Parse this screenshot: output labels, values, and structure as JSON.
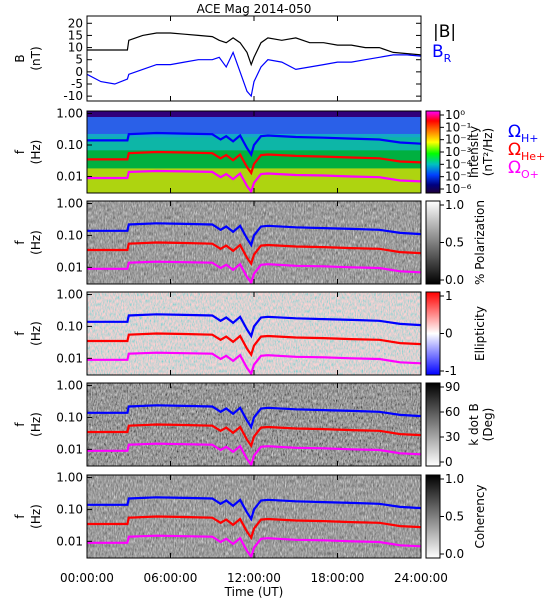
{
  "chart_data": {
    "title": "ACE Mag 2014-050",
    "x_axis": {
      "label": "Time (UT)",
      "ticks": [
        "00:00:00",
        "06:00:00",
        "12:00:00",
        "18:00:00",
        "24:00:00"
      ],
      "range_hours": [
        0,
        24
      ]
    },
    "panels": [
      {
        "id": "field",
        "type": "line",
        "ylabel": "B",
        "yunit": "(nT)",
        "ylim": [
          -12,
          23
        ],
        "yticks": [
          "20",
          "15",
          "10",
          "5",
          "0",
          "-5",
          "-10"
        ],
        "legend": [
          {
            "name": "|B|",
            "color": "#000000"
          },
          {
            "name": "B",
            "sub": "R",
            "color": "#0000ff"
          }
        ],
        "series": [
          {
            "name": "|B|",
            "color": "#000000",
            "x": [
              0,
              2.9,
              3.0,
              4,
              5,
              6,
              7,
              8,
              9,
              9.5,
              10,
              10.5,
              11,
              11.5,
              11.8,
              12,
              12.5,
              13,
              14,
              15,
              16,
              17,
              18,
              19,
              20,
              21,
              22,
              23,
              24
            ],
            "y": [
              9,
              9,
              13,
              15,
              16,
              16,
              15.5,
              15,
              14.5,
              13,
              12,
              14,
              12,
              8,
              3,
              6,
              12,
              14,
              13,
              14,
              12,
              12,
              11,
              11,
              10,
              10,
              8,
              7.5,
              7
            ]
          },
          {
            "name": "B_R",
            "color": "#0000ff",
            "x": [
              0,
              1,
              2,
              2.9,
              3.0,
              4,
              5,
              6,
              7,
              8,
              9,
              9.5,
              10,
              10.5,
              11,
              11.5,
              11.8,
              12,
              12.5,
              13,
              14,
              15,
              16,
              17,
              18,
              19,
              20,
              21,
              22,
              23,
              24
            ],
            "y": [
              -1,
              -4,
              -5,
              -3,
              -1,
              1,
              3,
              3,
              4,
              5,
              5,
              6,
              2,
              8,
              0,
              -8,
              -10,
              -4,
              2,
              5,
              4,
              1,
              2,
              3,
              4,
              4,
              5,
              6,
              7,
              7,
              6.5
            ]
          }
        ]
      },
      {
        "id": "intensity",
        "type": "heatmap",
        "ylabel": "f",
        "yunit": "(Hz)",
        "yscale": "log",
        "ylim": [
          0.003,
          1.2
        ],
        "yticks": [
          "1.00",
          "0.10",
          "0.01"
        ],
        "colorbar": {
          "label": "Intensity",
          "unit": "(nT²/Hz)",
          "ticks": [
            "10⁰",
            "10⁻¹",
            "10⁻²",
            "10⁻³",
            "10⁻⁴",
            "10⁻⁵",
            "10⁻⁶"
          ],
          "colors": [
            "#ff00ff",
            "#ff0000",
            "#ff8000",
            "#ffff00",
            "#00ff00",
            "#00c0c0",
            "#0040ff",
            "#000080",
            "#20003a"
          ]
        },
        "legend": [
          {
            "name": "Ω",
            "sub": "H+",
            "color": "#0000ff"
          },
          {
            "name": "Ω",
            "sub": "He+",
            "color": "#ff0000"
          },
          {
            "name": "Ω",
            "sub": "O+",
            "color": "#ff00ff"
          }
        ]
      },
      {
        "id": "polarization",
        "type": "heatmap",
        "ylabel": "f",
        "yunit": "(Hz)",
        "yscale": "log",
        "ylim": [
          0.003,
          1.2
        ],
        "yticks": [
          "1.00",
          "0.10",
          "0.01"
        ],
        "colorbar": {
          "label": "% Polarization",
          "ticks": [
            "1.0",
            "0.5",
            "0.0"
          ],
          "colors": [
            "#ffffff",
            "#000000"
          ]
        }
      },
      {
        "id": "ellipticity",
        "type": "heatmap",
        "ylabel": "f",
        "yunit": "(Hz)",
        "yscale": "log",
        "ylim": [
          0.003,
          1.2
        ],
        "yticks": [
          "1.00",
          "0.10",
          "0.01"
        ],
        "colorbar": {
          "label": "Ellipticity",
          "ticks": [
            "1",
            "0",
            "-1"
          ],
          "colors": [
            "#ff0000",
            "#ffffff",
            "#0000ff"
          ]
        }
      },
      {
        "id": "kdotb",
        "type": "heatmap",
        "ylabel": "f",
        "yunit": "(Hz)",
        "yscale": "log",
        "ylim": [
          0.003,
          1.2
        ],
        "yticks": [
          "1.00",
          "0.10",
          "0.01"
        ],
        "colorbar": {
          "label": "k dot B",
          "unit": "(Deg)",
          "ticks": [
            "90",
            "60",
            "30",
            "0"
          ],
          "colors": [
            "#000000",
            "#ffffff"
          ]
        }
      },
      {
        "id": "coherency",
        "type": "heatmap",
        "ylabel": "f",
        "yunit": "(Hz)",
        "yscale": "log",
        "ylim": [
          0.003,
          1.2
        ],
        "yticks": [
          "1.00",
          "0.10",
          "0.01"
        ],
        "colorbar": {
          "label": "Coherency",
          "ticks": [
            "1.0",
            "0.5",
            "0.0"
          ],
          "colors": [
            "#000000",
            "#ffffff"
          ]
        }
      }
    ],
    "gyrofrequency_lines": [
      {
        "name": "Ω_H+",
        "color": "#0000ff",
        "x": [
          0,
          2.9,
          3.0,
          5,
          7,
          9,
          9.6,
          10,
          10.5,
          11,
          11.5,
          11.8,
          12,
          12.5,
          13,
          15,
          17,
          19,
          21,
          22.5,
          24
        ],
        "y": [
          0.14,
          0.14,
          0.22,
          0.24,
          0.23,
          0.22,
          0.15,
          0.19,
          0.13,
          0.2,
          0.08,
          0.05,
          0.1,
          0.19,
          0.2,
          0.18,
          0.17,
          0.16,
          0.15,
          0.12,
          0.11
        ]
      },
      {
        "name": "Ω_He+",
        "color": "#ff0000",
        "x": [
          0,
          2.9,
          3.0,
          5,
          7,
          9,
          9.6,
          10,
          10.5,
          11,
          11.5,
          11.8,
          12,
          12.5,
          13,
          15,
          17,
          19,
          21,
          22.5,
          24
        ],
        "y": [
          0.035,
          0.035,
          0.055,
          0.06,
          0.058,
          0.055,
          0.038,
          0.048,
          0.033,
          0.05,
          0.02,
          0.013,
          0.025,
          0.048,
          0.05,
          0.045,
          0.043,
          0.04,
          0.038,
          0.03,
          0.028
        ]
      },
      {
        "name": "Ω_O+",
        "color": "#ff00ff",
        "x": [
          0,
          2.9,
          3.0,
          5,
          7,
          9,
          9.6,
          10,
          10.5,
          11,
          11.5,
          11.8,
          12,
          12.5,
          13,
          15,
          17,
          19,
          21,
          22.5,
          24
        ],
        "y": [
          0.009,
          0.009,
          0.014,
          0.015,
          0.0145,
          0.014,
          0.0095,
          0.012,
          0.0083,
          0.0125,
          0.005,
          0.0033,
          0.0063,
          0.012,
          0.0125,
          0.0112,
          0.0108,
          0.01,
          0.0095,
          0.0075,
          0.007
        ]
      }
    ]
  }
}
